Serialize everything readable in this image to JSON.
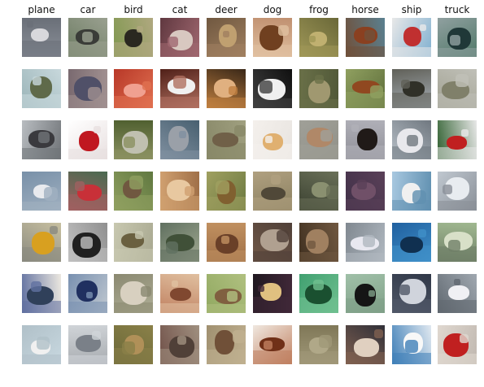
{
  "grid": {
    "columns": [
      {
        "label": "plane",
        "cells": [
          {
            "bg": "#8a8f98",
            "sub": "#6a6f78",
            "fg": "#d8d8dc"
          },
          {
            "bg": "#9ab4b8",
            "sub": "#c8d8dc",
            "fg": "#5f6a4a"
          },
          {
            "bg": "#b8bcc0",
            "sub": "#707478",
            "fg": "#3a3a3e"
          },
          {
            "bg": "#7890a8",
            "sub": "#a0b0c0",
            "fg": "#e8eaee"
          },
          {
            "bg": "#c8c0a0",
            "sub": "#8a8a80",
            "fg": "#d8a020"
          },
          {
            "bg": "#ece8e0",
            "sub": "#6070a0",
            "fg": "#30405a"
          },
          {
            "bg": "#c8d8e0",
            "sub": "#b0c0c8",
            "fg": "#f0f0f0"
          }
        ]
      },
      {
        "label": "car",
        "cells": [
          {
            "bg": "#6a7a60",
            "sub": "#9aa090",
            "fg": "#3a3c38"
          },
          {
            "bg": "#7a6a70",
            "sub": "#a09090",
            "fg": "#505068"
          },
          {
            "bg": "#ffffff",
            "sub": "#e8e0e0",
            "fg": "#c01820"
          },
          {
            "bg": "#4a6a50",
            "sub": "#a06060",
            "fg": "#c83038"
          },
          {
            "bg": "#909090",
            "sub": "#c0c0c0",
            "fg": "#202020"
          },
          {
            "bg": "#c0c8d0",
            "sub": "#7890b0",
            "fg": "#203060"
          },
          {
            "bg": "#a8acb0",
            "sub": "#d0d4d8",
            "fg": "#7a8088"
          }
        ]
      },
      {
        "label": "bird",
        "cells": [
          {
            "bg": "#809850",
            "sub": "#b0a880",
            "fg": "#2a2820"
          },
          {
            "bg": "#b83828",
            "sub": "#e07050",
            "fg": "#f0a090"
          },
          {
            "bg": "#506030",
            "sub": "#8a9060",
            "fg": "#c0c0b0"
          },
          {
            "bg": "#607840",
            "sub": "#90a060",
            "fg": "#705840"
          },
          {
            "bg": "#a8a890",
            "sub": "#c8c8b0",
            "fg": "#6a6040"
          },
          {
            "bg": "#b0b098",
            "sub": "#8a8870",
            "fg": "#d8d0c0"
          },
          {
            "bg": "#6a6838",
            "sub": "#8a8048",
            "fg": "#b09058"
          }
        ]
      },
      {
        "label": "cat",
        "cells": [
          {
            "bg": "#603840",
            "sub": "#a06870",
            "fg": "#d8c8c0"
          },
          {
            "bg": "#502018",
            "sub": "#b07060",
            "fg": "#f0f0f0"
          },
          {
            "bg": "#486070",
            "sub": "#8090a0",
            "fg": "#9aa0a8"
          },
          {
            "bg": "#a07048",
            "sub": "#d0a070",
            "fg": "#e8c8a0"
          },
          {
            "bg": "#a0a890",
            "sub": "#607060",
            "fg": "#405038"
          },
          {
            "bg": "#c08060",
            "sub": "#e0c0a0",
            "fg": "#804830"
          },
          {
            "bg": "#705048",
            "sub": "#a09080",
            "fg": "#504038"
          }
        ]
      },
      {
        "label": "deer",
        "cells": [
          {
            "bg": "#705840",
            "sub": "#a08060",
            "fg": "#c0a070"
          },
          {
            "bg": "#3a2818",
            "sub": "#c08040",
            "fg": "#e0b080"
          },
          {
            "bg": "#a0a080",
            "sub": "#888868",
            "fg": "#706048"
          },
          {
            "bg": "#6a7840",
            "sub": "#a0a060",
            "fg": "#806030"
          },
          {
            "bg": "#a07048",
            "sub": "#c09060",
            "fg": "#6a4028"
          },
          {
            "bg": "#90a860",
            "sub": "#b0c080",
            "fg": "#806040"
          },
          {
            "bg": "#a09070",
            "sub": "#c0b090",
            "fg": "#705038"
          }
        ]
      },
      {
        "label": "dog",
        "cells": [
          {
            "bg": "#c09070",
            "sub": "#e0c0a0",
            "fg": "#704020"
          },
          {
            "bg": "#101010",
            "sub": "#404040",
            "fg": "#f0f0f0"
          },
          {
            "bg": "#e8e4e0",
            "sub": "#f4f0ec",
            "fg": "#e0b070"
          },
          {
            "bg": "#8a8060",
            "sub": "#b0a080",
            "fg": "#504838"
          },
          {
            "bg": "#705848",
            "sub": "#504038",
            "fg": "#b0a090"
          },
          {
            "bg": "#201820",
            "sub": "#402838",
            "fg": "#e0c080"
          },
          {
            "bg": "#f0e8e0",
            "sub": "#c08060",
            "fg": "#703018"
          }
        ]
      },
      {
        "label": "frog",
        "cells": [
          {
            "bg": "#6a6838",
            "sub": "#a09858",
            "fg": "#c0b070"
          },
          {
            "bg": "#505838",
            "sub": "#6a7048",
            "fg": "#a09870"
          },
          {
            "bg": "#909088",
            "sub": "#a0a098",
            "fg": "#b08868"
          },
          {
            "bg": "#3a4030",
            "sub": "#6a7058",
            "fg": "#8a9070"
          },
          {
            "bg": "#403020",
            "sub": "#705840",
            "fg": "#a08060"
          },
          {
            "bg": "#40a070",
            "sub": "#70c090",
            "fg": "#1a5030"
          },
          {
            "bg": "#807858",
            "sub": "#a09878",
            "fg": "#b0a888"
          }
        ]
      },
      {
        "label": "horse",
        "cells": [
          {
            "bg": "#5a8090",
            "sub": "#70503a",
            "fg": "#8a4020"
          },
          {
            "bg": "#5a6a38",
            "sub": "#90a060",
            "fg": "#904820"
          },
          {
            "bg": "#909098",
            "sub": "#b0b0b8",
            "fg": "#201a18"
          },
          {
            "bg": "#403048",
            "sub": "#5a4058",
            "fg": "#705068"
          },
          {
            "bg": "#808890",
            "sub": "#b0b8c0",
            "fg": "#e8e8f0"
          },
          {
            "bg": "#a0c0a8",
            "sub": "#80a088",
            "fg": "#151515"
          },
          {
            "bg": "#303038",
            "sub": "#806050",
            "fg": "#e0d0c0"
          }
        ]
      },
      {
        "label": "ship",
        "cells": [
          {
            "bg": "#80b0d0",
            "sub": "#e8e8e8",
            "fg": "#c03030"
          },
          {
            "bg": "#a8b0b8",
            "sub": "#606058",
            "fg": "#303028"
          },
          {
            "bg": "#b8c0c8",
            "sub": "#707880",
            "fg": "#e8e8ec"
          },
          {
            "bg": "#a8c8e0",
            "sub": "#6090b0",
            "fg": "#f0f0f0"
          },
          {
            "bg": "#2060a0",
            "sub": "#4090c8",
            "fg": "#103050"
          },
          {
            "bg": "#303848",
            "sub": "#505868",
            "fg": "#d0d4dc"
          },
          {
            "bg": "#e0e8f0",
            "sub": "#4080b8",
            "fg": "#f8f8f8"
          }
        ]
      },
      {
        "label": "truck",
        "cells": [
          {
            "bg": "#507868",
            "sub": "#90a0a0",
            "fg": "#203838"
          },
          {
            "bg": "#a0a090",
            "sub": "#c0c0b8",
            "fg": "#80806a"
          },
          {
            "bg": "#306030",
            "sub": "#e8e8e8",
            "fg": "#c02020"
          },
          {
            "bg": "#c0c8d0",
            "sub": "#8a9098",
            "fg": "#e8ecf0"
          },
          {
            "bg": "#a0b890",
            "sub": "#708068",
            "fg": "#d8e0c8"
          },
          {
            "bg": "#a0a8b0",
            "sub": "#606870",
            "fg": "#f0f0f4"
          },
          {
            "bg": "#c0b8b0",
            "sub": "#e0d8d0",
            "fg": "#c02020"
          }
        ]
      }
    ]
  }
}
